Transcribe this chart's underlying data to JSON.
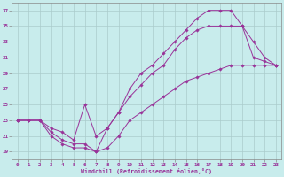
{
  "xlabel": "Windchill (Refroidissement éolien,°C)",
  "ylabel": "",
  "background_color": "#c8ecec",
  "line_color": "#993399",
  "grid_color": "#aacccc",
  "xlim": [
    -0.5,
    23.5
  ],
  "ylim": [
    18,
    38
  ],
  "yticks": [
    19,
    21,
    23,
    25,
    27,
    29,
    31,
    33,
    35,
    37
  ],
  "xticks": [
    0,
    1,
    2,
    3,
    4,
    5,
    6,
    7,
    8,
    9,
    10,
    11,
    12,
    13,
    14,
    15,
    16,
    17,
    18,
    19,
    20,
    21,
    22,
    23
  ],
  "series": [
    {
      "x": [
        0,
        1,
        2,
        3,
        4,
        5,
        6,
        7,
        8,
        9,
        10,
        11,
        12,
        13,
        14,
        15,
        16,
        17,
        18,
        19,
        20,
        21,
        22,
        23
      ],
      "y": [
        23,
        23,
        23,
        22,
        21.5,
        20.5,
        25,
        21,
        22,
        24,
        27,
        29,
        30,
        31.5,
        33,
        34.5,
        36,
        37,
        37,
        37,
        35,
        33,
        31,
        30
      ]
    },
    {
      "x": [
        0,
        1,
        2,
        3,
        4,
        5,
        6,
        7,
        8,
        9,
        10,
        11,
        12,
        13,
        14,
        15,
        16,
        17,
        18,
        19,
        20,
        21,
        22,
        23
      ],
      "y": [
        23,
        23,
        23,
        21.5,
        20.5,
        20,
        20,
        19,
        22,
        24,
        26,
        27.5,
        29,
        30,
        32,
        33.5,
        34.5,
        35,
        35,
        35,
        35,
        31,
        30.5,
        30
      ]
    },
    {
      "x": [
        0,
        1,
        2,
        3,
        4,
        5,
        6,
        7,
        8,
        9,
        10,
        11,
        12,
        13,
        14,
        15,
        16,
        17,
        18,
        19,
        20,
        21,
        22,
        23
      ],
      "y": [
        23,
        23,
        23,
        21,
        20,
        19.5,
        19.5,
        19,
        19.5,
        21,
        23,
        24,
        25,
        26,
        27,
        28,
        28.5,
        29,
        29.5,
        30,
        30,
        30,
        30,
        30
      ]
    }
  ]
}
